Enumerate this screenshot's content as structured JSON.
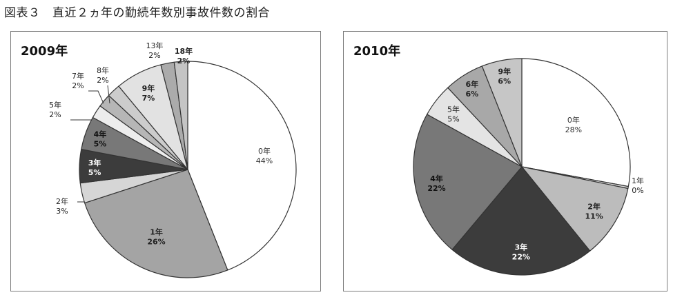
{
  "figure_title": "図表３　直近２ヵ年の勤続年数別事故件数の割合",
  "chart_data": [
    {
      "type": "pie",
      "title": "2009年",
      "start_angle_deg": 0,
      "direction": "clockwise",
      "slices": [
        {
          "label": "0年",
          "value": 44,
          "pct": "44%",
          "color": "#ffffff",
          "text_color": "#333333",
          "bold": false
        },
        {
          "label": "1年",
          "value": 26,
          "pct": "26%",
          "color": "#a4a4a4",
          "text_color": "#222222",
          "bold": true
        },
        {
          "label": "2年",
          "value": 3,
          "pct": "3%",
          "color": "#d6d6d6",
          "text_color": "#222222",
          "bold": false
        },
        {
          "label": "3年",
          "value": 5,
          "pct": "5%",
          "color": "#3c3c3c",
          "text_color": "#ffffff",
          "bold": true
        },
        {
          "label": "4年",
          "value": 5,
          "pct": "5%",
          "color": "#787878",
          "text_color": "#111111",
          "bold": true
        },
        {
          "label": "5年",
          "value": 2,
          "pct": "2%",
          "color": "#ededed",
          "text_color": "#222222",
          "bold": false
        },
        {
          "label": "7年",
          "value": 2,
          "pct": "2%",
          "color": "#b6b6b6",
          "text_color": "#222222",
          "bold": false
        },
        {
          "label": "8年",
          "value": 2,
          "pct": "2%",
          "color": "#cccccc",
          "text_color": "#222222",
          "bold": false
        },
        {
          "label": "9年",
          "value": 7,
          "pct": "7%",
          "color": "#e2e2e2",
          "text_color": "#222222",
          "bold": true
        },
        {
          "label": "13年",
          "value": 2,
          "pct": "2%",
          "color": "#ababab",
          "text_color": "#222222",
          "bold": false
        },
        {
          "label": "18年",
          "value": 2,
          "pct": "2%",
          "color": "#c4c4c4",
          "text_color": "#222222",
          "bold": true
        }
      ]
    },
    {
      "type": "pie",
      "title": "2010年",
      "start_angle_deg": 0,
      "direction": "clockwise",
      "slices": [
        {
          "label": "0年",
          "value": 28,
          "pct": "28%",
          "color": "#ffffff",
          "text_color": "#333333",
          "bold": false
        },
        {
          "label": "1年",
          "value": 0.3,
          "pct": "0%",
          "color": "#e0e0e0",
          "text_color": "#222222",
          "bold": false
        },
        {
          "label": "2年",
          "value": 11,
          "pct": "11%",
          "color": "#bcbcbc",
          "text_color": "#222222",
          "bold": true
        },
        {
          "label": "3年",
          "value": 22,
          "pct": "22%",
          "color": "#3c3c3c",
          "text_color": "#ffffff",
          "bold": true
        },
        {
          "label": "4年",
          "value": 22,
          "pct": "22%",
          "color": "#787878",
          "text_color": "#111111",
          "bold": true
        },
        {
          "label": "5年",
          "value": 5,
          "pct": "5%",
          "color": "#e4e4e4",
          "text_color": "#222222",
          "bold": false
        },
        {
          "label": "6年",
          "value": 6,
          "pct": "6%",
          "color": "#a8a8a8",
          "text_color": "#222222",
          "bold": true
        },
        {
          "label": "9年",
          "value": 6,
          "pct": "6%",
          "color": "#c6c6c6",
          "text_color": "#222222",
          "bold": true
        }
      ]
    }
  ]
}
